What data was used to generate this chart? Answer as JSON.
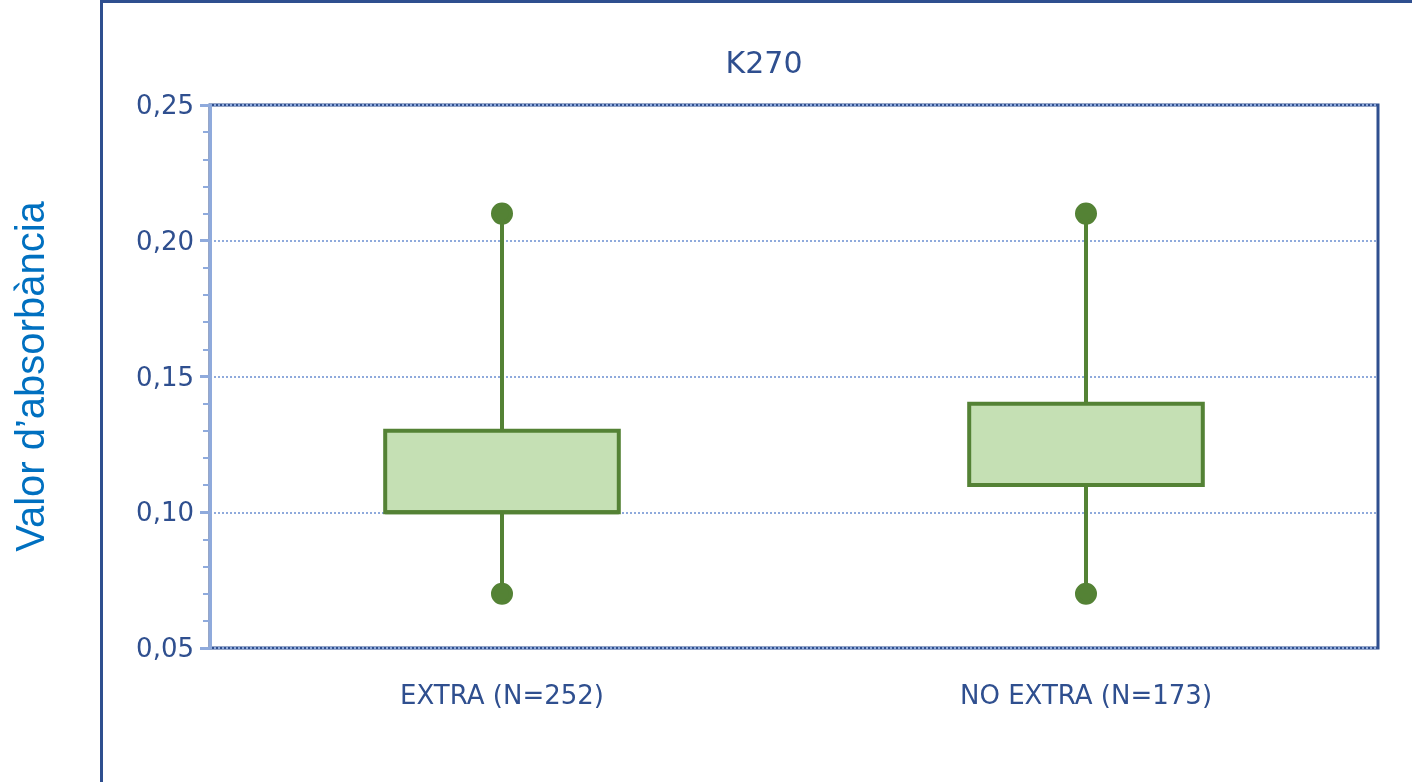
{
  "chart_data": {
    "type": "box",
    "title": "K270",
    "ylabel": "Valor d’absorbància",
    "categories": [
      "EXTRA (N=252)",
      "NO EXTRA (N=173)"
    ],
    "series": [
      {
        "color": "#548235",
        "boxes": [
          {
            "low": 0.07,
            "q1": 0.1,
            "median": 0.1,
            "q3": 0.13,
            "high": 0.21
          },
          {
            "low": 0.07,
            "q1": 0.11,
            "median": 0.11,
            "q3": 0.14,
            "high": 0.21
          }
        ]
      }
    ],
    "ylim": [
      0.05,
      0.25
    ],
    "yticks": [
      {
        "value": 0.05,
        "label": "0,05"
      },
      {
        "value": 0.1,
        "label": "0,10"
      },
      {
        "value": 0.15,
        "label": "0,15"
      },
      {
        "value": 0.2,
        "label": "0,20"
      },
      {
        "value": 0.25,
        "label": "0,25"
      }
    ],
    "grid": "y",
    "marker": "circle"
  }
}
